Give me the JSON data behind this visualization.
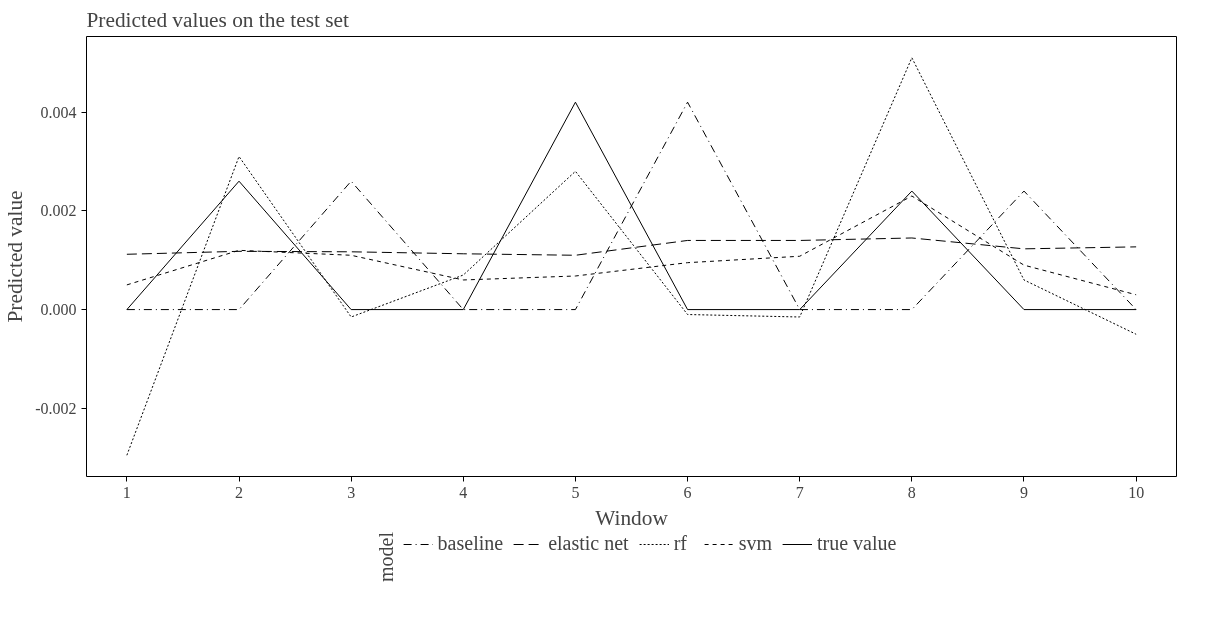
{
  "chart_data": {
    "type": "line",
    "title": "Predicted values on the test set",
    "xlabel": "Window",
    "ylabel": "Predicted value",
    "legend_title": "model",
    "legend": "bottom",
    "grid": false,
    "x": [
      1,
      2,
      3,
      4,
      5,
      6,
      7,
      8,
      9,
      10
    ],
    "xlim": [
      0.64,
      10.36
    ],
    "xticks": [
      1,
      2,
      3,
      4,
      5,
      6,
      7,
      8,
      9,
      10
    ],
    "ylim": [
      -0.00338,
      0.00553
    ],
    "yticks": [
      {
        "value": -0.002,
        "label": "-0.002"
      },
      {
        "value": 0,
        "label": "0.000"
      },
      {
        "value": 0.002,
        "label": "0.002"
      },
      {
        "value": 0.004,
        "label": "0.004"
      }
    ],
    "series": [
      {
        "name": "baseline",
        "color": "#000000",
        "line_style": "dashdot",
        "values": [
          0,
          0,
          0.0026,
          0,
          0,
          0.0042,
          0,
          0,
          0.0024,
          0
        ]
      },
      {
        "name": "elastic net",
        "color": "#000000",
        "line_style": "longdash",
        "values": [
          0.00112,
          0.00118,
          0.00117,
          0.00113,
          0.0011,
          0.0014,
          0.0014,
          0.00145,
          0.00123,
          0.00127
        ]
      },
      {
        "name": "rf",
        "color": "#000000",
        "line_style": "dotted",
        "values": [
          -0.00295,
          0.0031,
          -0.00015,
          0.0007,
          0.0028,
          -0.0001,
          -0.00015,
          0.0051,
          0.0006,
          -0.0005
        ]
      },
      {
        "name": "svm",
        "color": "#000000",
        "line_style": "dashed",
        "values": [
          0.0005,
          0.0012,
          0.0011,
          0.0006,
          0.00068,
          0.00095,
          0.00108,
          0.0023,
          0.0009,
          0.0003
        ]
      },
      {
        "name": "true value",
        "color": "#000000",
        "line_style": "solid",
        "values": [
          0,
          0.0026,
          0,
          0,
          0.0042,
          0,
          0,
          0.0024,
          0,
          0
        ]
      }
    ]
  }
}
